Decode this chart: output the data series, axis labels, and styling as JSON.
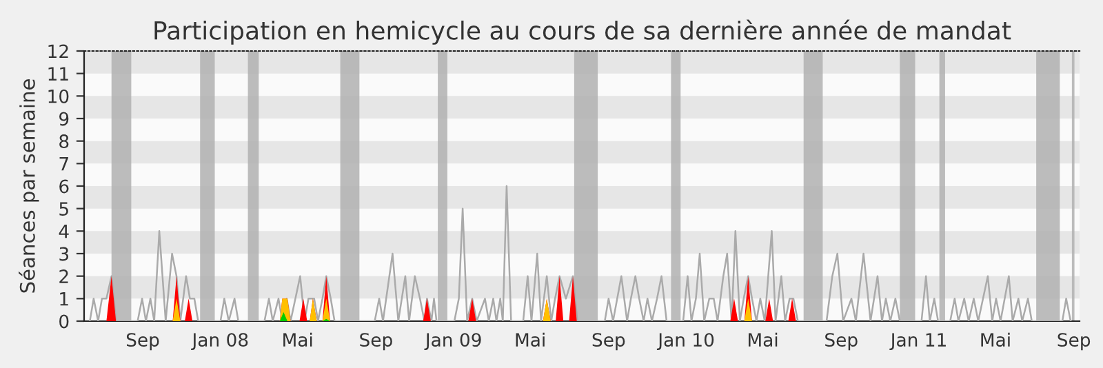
{
  "chart_data": {
    "type": "area",
    "title": "Participation en hemicycle au cours de sa dernière année de mandat",
    "ylabel": "Séances par semaine",
    "xlim": [
      "2007-06-01",
      "2011-09-10"
    ],
    "ylim": [
      0,
      12
    ],
    "yticks": [
      0,
      1,
      2,
      3,
      4,
      5,
      6,
      7,
      8,
      9,
      10,
      11,
      12
    ],
    "xticks": [
      {
        "value": "2007-09-01",
        "label": "Sep"
      },
      {
        "value": "2008-01-01",
        "label": "Jan 08"
      },
      {
        "value": "2008-05-01",
        "label": "Mai"
      },
      {
        "value": "2008-09-01",
        "label": "Sep"
      },
      {
        "value": "2009-01-01",
        "label": "Jan 09"
      },
      {
        "value": "2009-05-01",
        "label": "Mai"
      },
      {
        "value": "2009-09-01",
        "label": "Sep"
      },
      {
        "value": "2010-01-01",
        "label": "Jan 10"
      },
      {
        "value": "2010-05-01",
        "label": "Mai"
      },
      {
        "value": "2010-09-01",
        "label": "Sep"
      },
      {
        "value": "2011-01-01",
        "label": "Jan 11"
      },
      {
        "value": "2011-05-01",
        "label": "Mai"
      },
      {
        "value": "2011-09-01",
        "label": "Sep"
      }
    ],
    "bands": [
      {
        "axis": "x",
        "from": "2007-07-14",
        "to": "2007-08-14",
        "color": "#b0b0b0"
      },
      {
        "axis": "x",
        "from": "2007-11-30",
        "to": "2007-12-23",
        "color": "#b0b0b0"
      },
      {
        "axis": "x",
        "from": "2008-02-13",
        "to": "2008-03-01",
        "color": "#b0b0b0"
      },
      {
        "axis": "x",
        "from": "2008-07-07",
        "to": "2008-08-06",
        "color": "#b0b0b0"
      },
      {
        "axis": "x",
        "from": "2008-12-07",
        "to": "2008-12-22",
        "color": "#b0b0b0"
      },
      {
        "axis": "x",
        "from": "2009-07-09",
        "to": "2009-08-15",
        "color": "#b0b0b0"
      },
      {
        "axis": "x",
        "from": "2009-12-08",
        "to": "2009-12-23",
        "color": "#b0b0b0"
      },
      {
        "axis": "x",
        "from": "2010-07-04",
        "to": "2010-08-03",
        "color": "#b0b0b0"
      },
      {
        "axis": "x",
        "from": "2010-12-02",
        "to": "2010-12-26",
        "color": "#b0b0b0"
      },
      {
        "axis": "x",
        "from": "2011-02-02",
        "to": "2011-02-11",
        "color": "#b0b0b0"
      },
      {
        "axis": "x",
        "from": "2011-07-04",
        "to": "2011-08-10",
        "color": "#b0b0b0"
      },
      {
        "axis": "x",
        "from": "2011-08-29",
        "to": "2011-09-02",
        "color": "#b0b0b0"
      }
    ],
    "series": [
      {
        "type": "line",
        "color": "#aaaaaa",
        "x": [
          "2007-06-10",
          "2007-06-16",
          "2007-06-23",
          "2007-06-29",
          "2007-07-06",
          "2007-07-14",
          "2007-07-21",
          "2007-08-24",
          "2007-08-31",
          "2007-09-06",
          "2007-09-13",
          "2007-09-19",
          "2007-09-27",
          "2007-10-07",
          "2007-10-17",
          "2007-10-24",
          "2007-10-30",
          "2007-11-08",
          "2007-11-14",
          "2007-11-21",
          "2007-11-27",
          "2008-01-01",
          "2008-01-07",
          "2008-01-14",
          "2008-01-23",
          "2008-01-29",
          "2008-03-10",
          "2008-03-17",
          "2008-03-23",
          "2008-04-01",
          "2008-04-07",
          "2008-04-14",
          "2008-04-20",
          "2008-05-05",
          "2008-05-12",
          "2008-05-18",
          "2008-05-27",
          "2008-06-02",
          "2008-06-09",
          "2008-06-15",
          "2008-06-22",
          "2008-06-28",
          "2008-08-30",
          "2008-09-06",
          "2008-09-12",
          "2008-09-27",
          "2008-10-06",
          "2008-10-17",
          "2008-10-23",
          "2008-11-01",
          "2008-11-09",
          "2008-11-16",
          "2008-11-20",
          "2008-11-27",
          "2008-12-01",
          "2008-12-05",
          "2009-01-02",
          "2009-01-09",
          "2009-01-15",
          "2009-01-22",
          "2009-01-30",
          "2009-02-06",
          "2009-02-19",
          "2009-02-25",
          "2009-03-04",
          "2009-03-09",
          "2009-03-15",
          "2009-03-19",
          "2009-03-25",
          "2009-04-01",
          "2009-04-20",
          "2009-04-27",
          "2009-05-03",
          "2009-05-12",
          "2009-05-18",
          "2009-05-27",
          "2009-06-03",
          "2009-06-09",
          "2009-06-16",
          "2009-06-26",
          "2009-07-07",
          "2009-07-14",
          "2009-08-26",
          "2009-09-01",
          "2009-09-08",
          "2009-09-21",
          "2009-09-30",
          "2009-10-06",
          "2009-10-13",
          "2009-10-19",
          "2009-10-26",
          "2009-11-01",
          "2009-11-08",
          "2009-11-16",
          "2009-11-23",
          "2009-12-01",
          "2009-12-27",
          "2010-01-03",
          "2010-01-09",
          "2010-01-16",
          "2010-01-22",
          "2010-01-29",
          "2010-02-06",
          "2010-02-13",
          "2010-02-19",
          "2010-02-28",
          "2010-03-06",
          "2010-03-13",
          "2010-03-19",
          "2010-03-26",
          "2010-04-01",
          "2010-04-08",
          "2010-04-14",
          "2010-04-21",
          "2010-04-27",
          "2010-05-04",
          "2010-05-15",
          "2010-05-21",
          "2010-05-30",
          "2010-06-05",
          "2010-06-12",
          "2010-06-18",
          "2010-06-25",
          "2010-08-09",
          "2010-08-18",
          "2010-08-26",
          "2010-09-04",
          "2010-09-17",
          "2010-09-24",
          "2010-10-06",
          "2010-10-17",
          "2010-10-28",
          "2010-11-04",
          "2010-11-10",
          "2010-11-17",
          "2010-11-25",
          "2010-12-02",
          "2011-01-05",
          "2011-01-12",
          "2011-01-18",
          "2011-01-25",
          "2011-01-31",
          "2011-02-19",
          "2011-02-26",
          "2011-03-04",
          "2011-03-13",
          "2011-03-20",
          "2011-03-28",
          "2011-04-04",
          "2011-04-19",
          "2011-04-26",
          "2011-05-02",
          "2011-05-09",
          "2011-05-22",
          "2011-05-28",
          "2011-06-06",
          "2011-06-12",
          "2011-06-21",
          "2011-06-27",
          "2011-08-14",
          "2011-08-20",
          "2011-08-27"
        ],
        "values": [
          0,
          1,
          0,
          1,
          1,
          2,
          0,
          0,
          1,
          0,
          1,
          0,
          4,
          0,
          3,
          2,
          0,
          2,
          1,
          1,
          0,
          0,
          1,
          0,
          1,
          0,
          0,
          1,
          0,
          1,
          0,
          1,
          0,
          2,
          0,
          1,
          1,
          0,
          1,
          2,
          1,
          0,
          0,
          1,
          0,
          3,
          0,
          2,
          0,
          2,
          1,
          0,
          1,
          0,
          1,
          0,
          0,
          1,
          5,
          0,
          1,
          0,
          1,
          0,
          1,
          0,
          1,
          0,
          6,
          0,
          0,
          2,
          0,
          3,
          0,
          2,
          0,
          1,
          2,
          1,
          2,
          0,
          0,
          1,
          0,
          2,
          0,
          1,
          2,
          1,
          0,
          1,
          0,
          1,
          2,
          0,
          0,
          2,
          0,
          1,
          3,
          0,
          1,
          1,
          0,
          2,
          3,
          0,
          4,
          0,
          1,
          2,
          1,
          0,
          1,
          0,
          4,
          0,
          2,
          0,
          1,
          1,
          0,
          0,
          2,
          3,
          0,
          1,
          0,
          3,
          0,
          2,
          0,
          1,
          0,
          1,
          0,
          0,
          2,
          0,
          1,
          0,
          0,
          1,
          0,
          1,
          0,
          1,
          0,
          2,
          0,
          1,
          0,
          2,
          0,
          1,
          0,
          1,
          0,
          0,
          1,
          0
        ]
      },
      {
        "color": "#ff0000",
        "x": [
          "2007-07-06",
          "2007-07-14",
          "2007-07-21",
          "2007-10-18",
          "2007-10-24",
          "2007-10-30",
          "2007-11-06",
          "2007-11-12",
          "2007-11-18",
          "2008-04-03",
          "2008-04-07",
          "2008-04-15",
          "2008-04-20",
          "2008-05-04",
          "2008-05-10",
          "2008-05-16",
          "2008-05-20",
          "2008-05-25",
          "2008-05-31",
          "2008-06-09",
          "2008-06-15",
          "2008-06-21",
          "2008-11-14",
          "2008-11-20",
          "2008-11-26",
          "2009-01-24",
          "2009-01-30",
          "2009-02-05",
          "2009-05-21",
          "2009-05-27",
          "2009-06-02",
          "2009-06-10",
          "2009-06-16",
          "2009-06-22",
          "2009-07-01",
          "2009-07-07",
          "2009-07-13",
          "2010-03-11",
          "2010-03-17",
          "2010-03-23",
          "2010-04-02",
          "2010-04-08",
          "2010-04-14",
          "2010-05-05",
          "2010-05-11",
          "2010-05-17",
          "2010-06-10",
          "2010-06-16",
          "2010-06-22"
        ],
        "values": [
          0,
          2,
          0,
          0,
          2,
          0,
          0,
          1,
          0,
          0,
          1,
          1,
          0,
          0,
          1,
          0,
          0,
          1,
          0,
          0,
          2,
          0,
          0,
          1,
          0,
          0,
          1,
          0,
          0,
          1,
          0,
          0,
          2,
          0,
          0,
          2,
          0,
          0,
          1,
          0,
          0,
          2,
          0,
          0,
          1,
          0,
          0,
          1,
          0
        ]
      },
      {
        "color": "#ffc000",
        "x": [
          "2007-10-18",
          "2007-10-24",
          "2007-10-30",
          "2008-04-03",
          "2008-04-07",
          "2008-04-15",
          "2008-04-20",
          "2008-05-20",
          "2008-05-25",
          "2008-05-31",
          "2008-06-09",
          "2008-06-15",
          "2008-06-21",
          "2009-05-21",
          "2009-05-27",
          "2009-06-02",
          "2010-04-02",
          "2010-04-08",
          "2010-04-14"
        ],
        "values": [
          0,
          1,
          0,
          0,
          1,
          1,
          0,
          0,
          1,
          0,
          0,
          1,
          0,
          0,
          1,
          0,
          0,
          1,
          0
        ]
      },
      {
        "color": "#00cc00",
        "x": [
          "2008-04-03",
          "2008-04-09",
          "2008-04-15",
          "2008-06-09",
          "2008-06-15",
          "2008-06-21"
        ],
        "values": [
          0,
          0.4,
          0,
          0,
          0.1,
          0
        ]
      }
    ]
  }
}
